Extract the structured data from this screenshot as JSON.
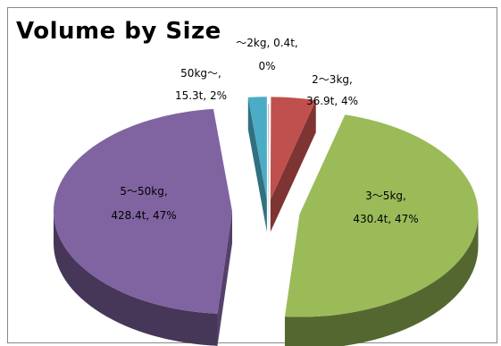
{
  "chart_data": {
    "type": "pie",
    "title": "Volume by Size",
    "categories": [
      "～2kg",
      "2～3kg",
      "3～5kg",
      "5～50kg",
      "50kg～"
    ],
    "series": [
      {
        "values": [
          0.4,
          36.9,
          430.4,
          428.4,
          15.3
        ]
      }
    ],
    "unit": "t",
    "percent_labels": [
      "0%",
      "4%",
      "47%",
      "47%",
      "2%"
    ],
    "data_labels": [
      [
        "～2kg, 0.4t,",
        "0%"
      ],
      [
        "2～3kg,",
        "36.9t, 4%"
      ],
      [
        "3～5kg,",
        "430.4t, 47%"
      ],
      [
        "5～50kg,",
        "428.4t, 47%"
      ],
      [
        "50kg～,",
        "15.3t, 2%"
      ]
    ],
    "colors": [
      "#8a8a8a",
      "#c0504d",
      "#9bbb59",
      "#8064a2",
      "#4bacc6"
    ],
    "exploded": true,
    "three_d": true,
    "legend": "none"
  }
}
